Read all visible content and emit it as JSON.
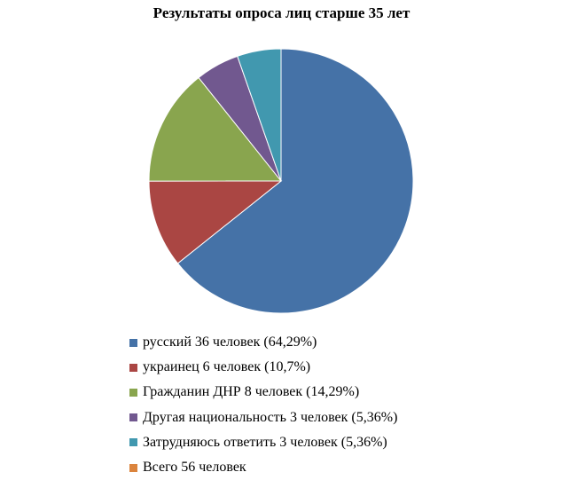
{
  "chart_data": {
    "type": "pie",
    "title": "Результаты опроса лиц старше 35 лет",
    "slices": [
      {
        "label": "русский 36 человек (64,29%)",
        "value": 64.29,
        "color": "#4572A7"
      },
      {
        "label": "украинец 6 человек (10,7%)",
        "value": 10.7,
        "color": "#AA4643"
      },
      {
        "label": "Гражданин ДНР 8 человек (14,29%)",
        "value": 14.29,
        "color": "#89A54E"
      },
      {
        "label": "Другая национальность 3 человек (5,36%)",
        "value": 5.36,
        "color": "#71588F"
      },
      {
        "label": "Затрудняюсь ответить 3 человек (5,36%)",
        "value": 5.36,
        "color": "#4198AF"
      },
      {
        "label": "Всего 56 человек",
        "value": 0,
        "color": "#DB843D"
      }
    ],
    "start": "12 o'clock",
    "direction": "clockwise",
    "legend_position": "bottom"
  }
}
